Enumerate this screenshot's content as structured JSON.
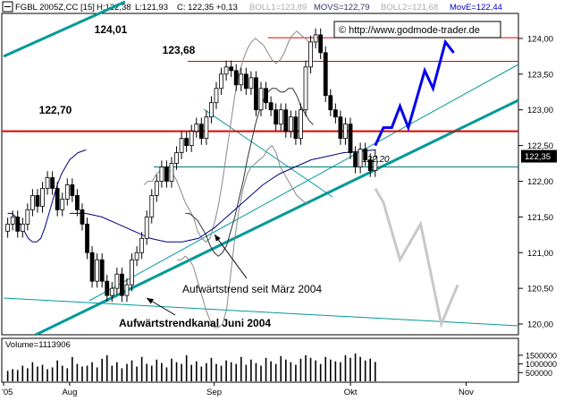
{
  "header": {
    "symbol": "FGBL 2005Z,CC [15]",
    "high": "H:122,38",
    "low": "L:121,93",
    "close": "C: 122,35 +0,13",
    "boll1": "BOLL1=123,89",
    "movs": "MOVS=122,79",
    "boll2": "BOLL2=121,68",
    "move": "MovE=122,44"
  },
  "copyright": "© http://www.godmode-trader.de",
  "volume_label": "Volume=1113906",
  "chart_data": {
    "type": "line",
    "title": "",
    "price_axis": {
      "ylim": [
        119.85,
        124.35
      ],
      "ticks": [
        {
          "v": 120.0,
          "label": "120,00"
        },
        {
          "v": 120.5,
          "label": "120,50"
        },
        {
          "v": 121.0,
          "label": "121,00"
        },
        {
          "v": 121.5,
          "label": "121,50"
        },
        {
          "v": 122.0,
          "label": "122,00"
        },
        {
          "v": 122.5,
          "label": "122,50"
        },
        {
          "v": 123.0,
          "label": "123,00"
        },
        {
          "v": 123.5,
          "label": "123,50"
        },
        {
          "v": 124.0,
          "label": "124,00"
        }
      ],
      "last_price_label": "122,35",
      "last_price": 122.35
    },
    "volume_axis": {
      "ticks": [
        {
          "v": 1500000,
          "label": "1500000"
        },
        {
          "v": 1000000,
          "label": "1000000"
        },
        {
          "v": 500000,
          "label": "500000"
        }
      ],
      "vmax": 1750000
    },
    "x_ticks": [
      "'05",
      "Aug",
      "Sep",
      "Okt",
      "Nov"
    ],
    "x_tick_positions": [
      0,
      16,
      51,
      84,
      112
    ],
    "bar_count": 126,
    "last_bar_index": 90,
    "closes": [
      121.4,
      121.5,
      121.3,
      121.4,
      121.6,
      121.8,
      121.65,
      121.9,
      122.05,
      121.9,
      121.6,
      121.75,
      121.95,
      121.8,
      121.6,
      121.4,
      121.0,
      120.6,
      120.9,
      120.6,
      120.4,
      120.5,
      120.7,
      120.4,
      120.55,
      120.9,
      121.0,
      121.2,
      121.5,
      121.8,
      122.0,
      122.2,
      122.0,
      122.25,
      122.4,
      122.6,
      122.5,
      122.7,
      122.8,
      122.6,
      122.9,
      123.1,
      123.3,
      123.5,
      123.6,
      123.55,
      123.35,
      123.5,
      123.3,
      123.45,
      123.0,
      123.3,
      123.1,
      123.0,
      122.8,
      123.0,
      122.7,
      122.9,
      122.6,
      123.0,
      123.6,
      123.95,
      124.05,
      123.8,
      123.2,
      123.0,
      122.9,
      122.6,
      122.8,
      122.4,
      122.2,
      122.45,
      122.3,
      122.15,
      122.35
    ],
    "bollinger_upper": [
      121.95,
      122.0,
      122.0,
      122.1,
      122.15,
      122.2,
      122.15,
      122.1,
      122.0,
      121.85,
      121.7,
      121.6,
      121.5,
      121.3,
      121.2,
      121.15,
      121.2,
      121.4,
      121.65,
      122.0,
      122.4,
      122.8,
      123.2,
      123.5,
      123.7,
      123.85,
      123.95,
      124.0,
      123.95,
      123.9,
      123.8,
      123.7,
      123.65,
      123.7,
      123.8,
      123.95,
      124.05,
      124.1,
      124.05,
      124.0,
      123.95,
      123.9
    ],
    "bollinger_lower": [
      120.9,
      120.9,
      120.95,
      120.9,
      120.8,
      120.6,
      120.4,
      120.2,
      120.05,
      119.95,
      119.95,
      120.0,
      120.2,
      120.7,
      121.2,
      121.6,
      121.9,
      122.1,
      122.2,
      122.25,
      122.3,
      122.35,
      122.45,
      122.5,
      122.4,
      122.2,
      122.1,
      122.0,
      121.9,
      121.8,
      121.75,
      121.7,
      121.68
    ],
    "moving_average_simple": [
      121.55,
      121.55,
      121.5,
      121.45,
      121.35,
      121.25,
      121.1,
      121.0,
      120.95,
      121.0,
      121.1,
      121.3,
      121.5,
      121.75,
      122.0,
      122.3,
      122.55,
      122.8,
      123.0,
      123.15,
      123.25,
      123.3,
      123.3,
      123.25,
      123.25,
      123.3,
      123.3,
      123.2,
      123.05,
      122.95,
      122.85,
      122.79
    ],
    "moving_average_exponential": [
      121.55,
      121.55,
      121.5,
      121.4,
      121.3,
      121.2,
      121.15,
      121.15,
      121.2,
      121.35,
      121.55,
      121.75,
      121.95,
      122.1,
      122.2,
      122.3,
      122.35,
      122.4,
      122.42,
      122.44
    ],
    "horizontal_levels": [
      {
        "value": 124.01,
        "label": "124,01",
        "color": "#dd0000"
      },
      {
        "value": 123.68,
        "label": "123,68",
        "color": "#dd0000"
      },
      {
        "value": 122.7,
        "label": "122,70",
        "color": "#dd0000"
      },
      {
        "value": 122.2,
        "label": "122,20",
        "color": "#007a7a"
      }
    ],
    "scenario_up": [
      [
        90,
        122.5
      ],
      [
        92,
        122.75
      ],
      [
        94,
        122.75
      ],
      [
        96,
        123.05
      ],
      [
        98,
        122.75
      ],
      [
        102,
        123.55
      ],
      [
        104,
        123.3
      ],
      [
        107,
        123.95
      ],
      [
        109,
        123.8
      ]
    ],
    "scenario_down": [
      [
        90,
        121.9
      ],
      [
        92,
        121.7
      ],
      [
        96,
        120.9
      ],
      [
        101,
        121.4
      ],
      [
        106,
        120.0
      ],
      [
        110,
        120.55
      ]
    ],
    "annotations": [
      {
        "text": "Aufwärtstrend seit März 2004"
      },
      {
        "text": "Aufwärtstrendkanal Juni 2004"
      }
    ],
    "volume_values": [
      600000,
      700000,
      650000,
      900000,
      750000,
      1100000,
      850000,
      950000,
      700000,
      800000,
      1200000,
      900000,
      750000,
      1400000,
      1000000,
      850000,
      900000,
      1100000,
      800000,
      1300000,
      1500000,
      900000,
      1100000,
      750000,
      1000000,
      1200000,
      850000,
      1400000,
      1000000,
      900000,
      1250000,
      1050000,
      800000,
      1300000,
      1100000,
      1000000,
      1500000,
      950000,
      1150000,
      850000,
      1050000,
      1350000,
      1000000,
      900000,
      1200000,
      1100000,
      1000000,
      1400000,
      950000,
      1250000,
      1050000,
      900000,
      1350000,
      1150000,
      1000000,
      1450000,
      1250000,
      1100000,
      950000,
      1300000,
      1500000,
      1350000,
      1200000,
      1000000,
      1400000,
      1250000,
      1150000,
      1100000,
      1500000,
      1350000,
      1600000,
      1400000,
      1200000,
      1300000,
      1113906
    ],
    "colors": {
      "up_candle": "#ffffff",
      "down_candle": "#000000",
      "resistance": "#dd0000",
      "support": "#007a7a",
      "trendline": "#009999",
      "scenario_up": "#0000ee",
      "scenario_down": "#c8c8c8",
      "moving_average": "#000080",
      "bollinger": "#888888",
      "border": "#000000"
    }
  }
}
